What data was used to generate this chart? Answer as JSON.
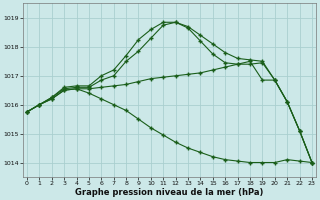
{
  "title": "Graphe pression niveau de la mer (hPa)",
  "background_color": "#cce8e8",
  "grid_color": "#aacfcf",
  "line_color": "#1a5e1a",
  "xlim": [
    -0.3,
    23.3
  ],
  "ylim": [
    1013.5,
    1019.5
  ],
  "yticks": [
    1014,
    1015,
    1016,
    1017,
    1018,
    1019
  ],
  "xticks": [
    0,
    1,
    2,
    3,
    4,
    5,
    6,
    7,
    8,
    9,
    10,
    11,
    12,
    13,
    14,
    15,
    16,
    17,
    18,
    19,
    20,
    21,
    22,
    23
  ],
  "series": [
    {
      "x": [
        0,
        1,
        2,
        3,
        4,
        5,
        6,
        7,
        8,
        9,
        10,
        11,
        12,
        13,
        14,
        15,
        16,
        17,
        18,
        19,
        20,
        21,
        22,
        23
      ],
      "y": [
        1015.75,
        1016.0,
        1016.25,
        1016.6,
        1016.65,
        1016.65,
        1017.0,
        1017.2,
        1017.7,
        1018.25,
        1018.6,
        1018.85,
        1018.85,
        1018.7,
        1018.4,
        1018.1,
        1017.8,
        1017.6,
        1017.55,
        1017.5,
        1016.85,
        1016.1,
        1015.1,
        1014.0
      ]
    },
    {
      "x": [
        0,
        1,
        2,
        3,
        4,
        5,
        6,
        7,
        8,
        9,
        10,
        11,
        12,
        13,
        14,
        15,
        16,
        17,
        18,
        19,
        20,
        21,
        22,
        23
      ],
      "y": [
        1015.75,
        1016.0,
        1016.25,
        1016.55,
        1016.6,
        1016.6,
        1016.85,
        1017.0,
        1017.5,
        1017.85,
        1018.3,
        1018.75,
        1018.85,
        1018.65,
        1018.2,
        1017.75,
        1017.45,
        1017.4,
        1017.4,
        1017.45,
        1016.85,
        1016.1,
        1015.1,
        1014.0
      ]
    },
    {
      "x": [
        0,
        1,
        2,
        3,
        4,
        5,
        6,
        7,
        8,
        9,
        10,
        11,
        12,
        13,
        14,
        15,
        16,
        17,
        18,
        19,
        20,
        21,
        22,
        23
      ],
      "y": [
        1015.75,
        1016.0,
        1016.2,
        1016.5,
        1016.55,
        1016.55,
        1016.6,
        1016.65,
        1016.7,
        1016.8,
        1016.9,
        1016.95,
        1017.0,
        1017.05,
        1017.1,
        1017.2,
        1017.3,
        1017.4,
        1017.5,
        1016.85,
        1016.85,
        1016.1,
        1015.1,
        1014.0
      ]
    },
    {
      "x": [
        0,
        1,
        2,
        3,
        4,
        5,
        6,
        7,
        8,
        9,
        10,
        11,
        12,
        13,
        14,
        15,
        16,
        17,
        18,
        19,
        20,
        21,
        22,
        23
      ],
      "y": [
        1015.75,
        1016.0,
        1016.2,
        1016.5,
        1016.55,
        1016.4,
        1016.2,
        1016.0,
        1015.8,
        1015.5,
        1015.2,
        1014.95,
        1014.7,
        1014.5,
        1014.35,
        1014.2,
        1014.1,
        1014.05,
        1014.0,
        1014.0,
        1014.0,
        1014.1,
        1014.05,
        1014.0
      ]
    }
  ]
}
